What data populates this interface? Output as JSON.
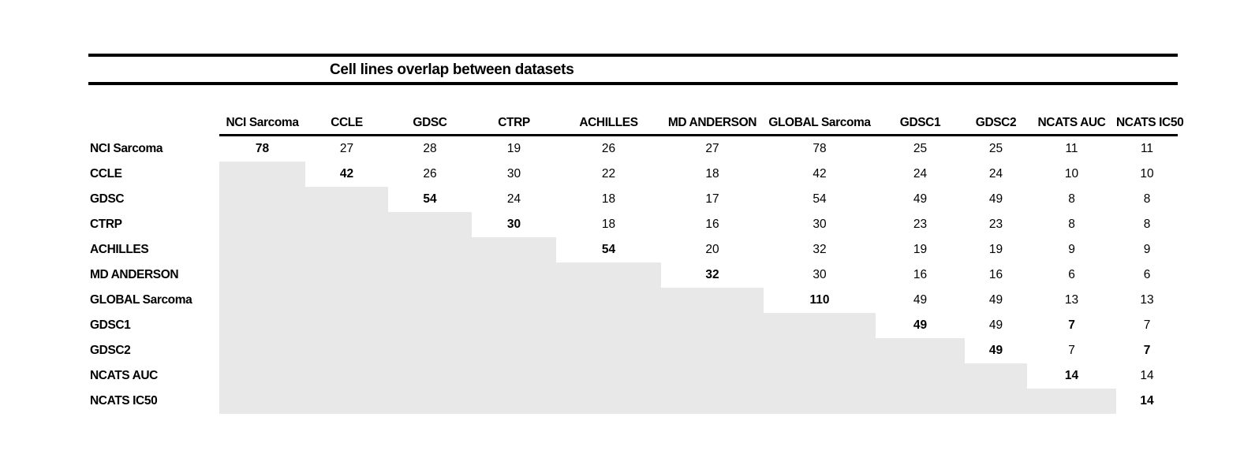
{
  "colors": {
    "background": "#ffffff",
    "shade": "#e8e8e8",
    "rule": "#000000",
    "text": "#000000"
  },
  "chart_data": {
    "type": "table",
    "title": "Cell lines overlap between datasets",
    "columns": [
      "NCI Sarcoma",
      "CCLE",
      "GDSC",
      "CTRP",
      "ACHILLES",
      "MD ANDERSON",
      "GLOBAL Sarcoma",
      "GDSC1",
      "GDSC2",
      "NCATS AUC",
      "NCATS IC50"
    ],
    "row_labels": [
      "NCI Sarcoma",
      "CCLE",
      "GDSC",
      "CTRP",
      "ACHILLES",
      "MD ANDERSON",
      "GLOBAL Sarcoma",
      "GDSC1",
      "GDSC2",
      "NCATS AUC",
      "NCATS IC50"
    ],
    "matrix": [
      [
        78,
        27,
        28,
        19,
        26,
        27,
        78,
        25,
        25,
        11,
        11
      ],
      [
        null,
        42,
        26,
        30,
        22,
        18,
        42,
        24,
        24,
        10,
        10
      ],
      [
        null,
        null,
        54,
        24,
        18,
        17,
        54,
        49,
        49,
        8,
        8
      ],
      [
        null,
        null,
        null,
        30,
        18,
        16,
        30,
        23,
        23,
        8,
        8
      ],
      [
        null,
        null,
        null,
        null,
        54,
        20,
        32,
        19,
        19,
        9,
        9
      ],
      [
        null,
        null,
        null,
        null,
        null,
        32,
        30,
        16,
        16,
        6,
        6
      ],
      [
        null,
        null,
        null,
        null,
        null,
        null,
        110,
        49,
        49,
        13,
        13
      ],
      [
        null,
        null,
        null,
        null,
        null,
        null,
        null,
        49,
        49,
        7,
        7
      ],
      [
        null,
        null,
        null,
        null,
        null,
        null,
        null,
        null,
        49,
        7,
        7
      ],
      [
        null,
        null,
        null,
        null,
        null,
        null,
        null,
        null,
        null,
        14,
        14
      ],
      [
        null,
        null,
        null,
        null,
        null,
        null,
        null,
        null,
        null,
        null,
        14
      ]
    ],
    "bold_cells": [
      [
        0,
        0
      ],
      [
        1,
        1
      ],
      [
        2,
        2
      ],
      [
        3,
        3
      ],
      [
        4,
        4
      ],
      [
        5,
        5
      ],
      [
        6,
        6
      ],
      [
        7,
        7
      ],
      [
        7,
        9
      ],
      [
        8,
        8
      ],
      [
        8,
        10
      ],
      [
        9,
        9
      ],
      [
        10,
        10
      ]
    ],
    "shaded_lower_triangle": true,
    "legend_position": "none",
    "grid": false
  }
}
